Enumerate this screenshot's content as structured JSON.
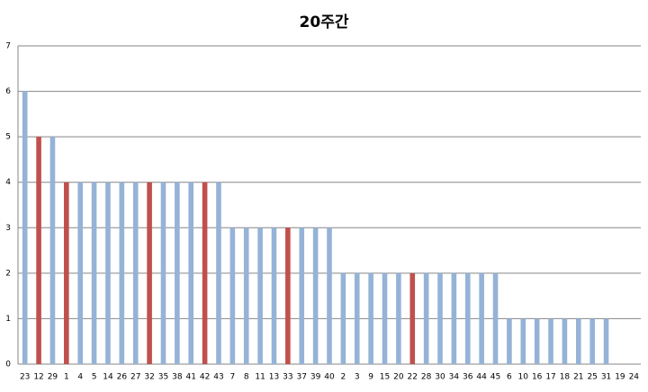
{
  "chart_data": {
    "type": "bar",
    "title": "20주간",
    "categories": [
      "23",
      "12",
      "29",
      "1",
      "4",
      "5",
      "14",
      "26",
      "27",
      "32",
      "35",
      "38",
      "41",
      "42",
      "43",
      "7",
      "8",
      "11",
      "13",
      "33",
      "37",
      "39",
      "40",
      "2",
      "3",
      "9",
      "15",
      "20",
      "22",
      "28",
      "30",
      "34",
      "36",
      "44",
      "45",
      "6",
      "10",
      "16",
      "17",
      "18",
      "21",
      "25",
      "31",
      "19",
      "24"
    ],
    "values": [
      6,
      5,
      5,
      4,
      4,
      4,
      4,
      4,
      4,
      4,
      4,
      4,
      4,
      4,
      4,
      3,
      3,
      3,
      3,
      3,
      3,
      3,
      3,
      2,
      2,
      2,
      2,
      2,
      2,
      2,
      2,
      2,
      2,
      2,
      2,
      1,
      1,
      1,
      1,
      1,
      1,
      1,
      1,
      0,
      0
    ],
    "colors": [
      "#95b3d7",
      "#c0504d",
      "#95b3d7",
      "#c0504d",
      "#95b3d7",
      "#95b3d7",
      "#95b3d7",
      "#95b3d7",
      "#95b3d7",
      "#c0504d",
      "#95b3d7",
      "#95b3d7",
      "#95b3d7",
      "#c0504d",
      "#95b3d7",
      "#95b3d7",
      "#95b3d7",
      "#95b3d7",
      "#95b3d7",
      "#c0504d",
      "#95b3d7",
      "#95b3d7",
      "#95b3d7",
      "#95b3d7",
      "#95b3d7",
      "#95b3d7",
      "#95b3d7",
      "#95b3d7",
      "#c0504d",
      "#95b3d7",
      "#95b3d7",
      "#95b3d7",
      "#95b3d7",
      "#95b3d7",
      "#95b3d7",
      "#95b3d7",
      "#95b3d7",
      "#95b3d7",
      "#95b3d7",
      "#95b3d7",
      "#95b3d7",
      "#95b3d7",
      "#95b3d7",
      "#95b3d7",
      "#95b3d7"
    ],
    "ylim": [
      0,
      7
    ],
    "yticks": [
      0,
      1,
      2,
      3,
      4,
      5,
      6,
      7
    ],
    "grid": true
  }
}
